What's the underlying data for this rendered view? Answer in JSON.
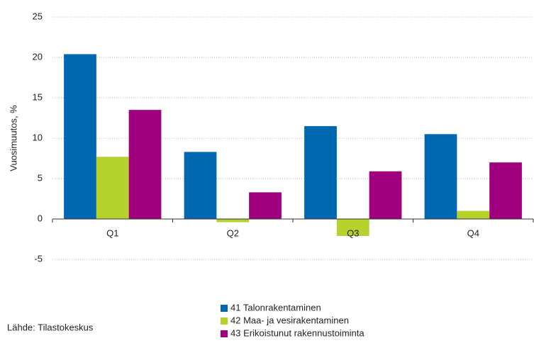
{
  "chart_data": {
    "type": "bar",
    "y_label": "Vuosimuutos, %",
    "categories": [
      "Q1",
      "Q2",
      "Q3",
      "Q4"
    ],
    "series": [
      {
        "name": "41 Talonrakentaminen",
        "color": "#0068b0",
        "values": [
          20.4,
          8.3,
          11.5,
          10.5
        ]
      },
      {
        "name": "42 Maa- ja vesirakentaminen",
        "color": "#b5d22d",
        "values": [
          7.7,
          -0.4,
          -2.1,
          1.0
        ]
      },
      {
        "name": "43 Erikoistunut rakennustoiminta",
        "color": "#a0007d",
        "values": [
          13.5,
          3.3,
          5.9,
          7.0
        ]
      }
    ],
    "ylim": [
      -5,
      25
    ],
    "yticks": [
      -5,
      0,
      5,
      10,
      15,
      20,
      25
    ],
    "grid": true,
    "legend": "bottom",
    "source": "Lähde: Tilastokeskus"
  }
}
